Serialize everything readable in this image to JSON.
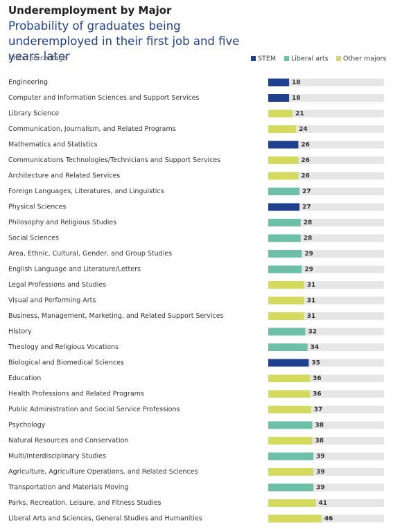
{
  "chart_data": {
    "type": "hbar",
    "title": "Underemployment by Major",
    "subtitle": "Probability of graduates being underemployed in their first job and five years later",
    "note": "Units: percentage",
    "xlim": [
      0,
      100
    ],
    "legend": "top-right",
    "categories": [
      "Engineering",
      "Computer and Information Sciences and Support Services",
      "Library Science",
      "Communication, Journalism, and Related Programs",
      "Mathematics and Statistics",
      "Communications Technologies/Technicians and Support Services",
      "Architecture and Related Services",
      "Foreign Languages, Literatures, and Linguistics",
      "Physical Sciences",
      "Philosophy and Religious Studies",
      "Social Sciences",
      "Area, Ethnic, Cultural, Gender, and Group Studies",
      "English Language and Literature/Letters",
      "Legal Professions and Studies",
      "Visual and Performing Arts",
      "Business, Management, Marketing, and Related Support Services",
      "History",
      "Theology and Religious Vocations",
      "Biological and Biomedical Sciences",
      "Education",
      "Health Professions and Related Programs",
      "Public Administration and Social Service Professions",
      "Psychology",
      "Natural Resources and Conservation",
      "Multi/Interdisciplinary Studies",
      "Agriculture, Agriculture Operations, and Related Sciences",
      "Transportation and Materials Moving",
      "Parks, Recreation, Leisure, and Fitness Studies",
      "Liberal Arts and Sciences, General Studies and Humanities"
    ],
    "series": [
      {
        "name": "STEM",
        "color": "#1f3f8f",
        "values": [
          18,
          18,
          null,
          null,
          26,
          null,
          null,
          null,
          27,
          null,
          null,
          null,
          null,
          null,
          null,
          null,
          null,
          null,
          35,
          null,
          null,
          null,
          null,
          null,
          null,
          null,
          null,
          null,
          null
        ]
      },
      {
        "name": "Liberal arts",
        "color": "#6dbfa8",
        "values": [
          null,
          null,
          null,
          null,
          null,
          null,
          null,
          27,
          null,
          28,
          28,
          29,
          29,
          null,
          null,
          null,
          32,
          34,
          null,
          null,
          null,
          null,
          38,
          null,
          39,
          null,
          39,
          null,
          null
        ]
      },
      {
        "name": "Other majors",
        "color": "#d3da5e",
        "values": [
          null,
          null,
          21,
          24,
          null,
          26,
          26,
          null,
          null,
          null,
          null,
          null,
          null,
          31,
          31,
          31,
          null,
          null,
          null,
          36,
          36,
          37,
          null,
          38,
          null,
          39,
          null,
          41,
          46
        ]
      }
    ]
  }
}
